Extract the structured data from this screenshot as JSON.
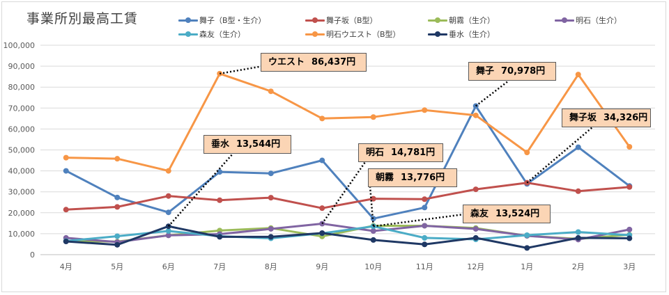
{
  "chart_data": {
    "type": "line",
    "title": "事業所別最高工賃",
    "categories": [
      "4月",
      "5月",
      "6月",
      "7月",
      "8月",
      "9月",
      "10月",
      "11月",
      "12月",
      "1月",
      "2月",
      "3月"
    ],
    "ylim": [
      0,
      100000
    ],
    "yticks": [
      0,
      10000,
      20000,
      30000,
      40000,
      50000,
      60000,
      70000,
      80000,
      90000,
      100000
    ],
    "ytick_labels": [
      "0",
      "10,000",
      "20,000",
      "30,000",
      "40,000",
      "50,000",
      "60,000",
      "70,000",
      "80,000",
      "90,000",
      "100,000"
    ],
    "grid": true,
    "legend_position": "top",
    "series": [
      {
        "name": "舞子（B型・生介）",
        "color": "#4f81bd",
        "values": [
          40000,
          27300,
          20200,
          39500,
          38800,
          45000,
          17200,
          22500,
          70978,
          33800,
          51300,
          32800
        ]
      },
      {
        "name": "舞子坂（B型）",
        "color": "#c0504d",
        "values": [
          21500,
          22800,
          28000,
          26000,
          27200,
          22200,
          26700,
          26500,
          31200,
          34326,
          30300,
          32300
        ]
      },
      {
        "name": "朝霧（生介）",
        "color": "#9bbb59",
        "values": [
          6500,
          6200,
          9200,
          11500,
          12700,
          8700,
          13776,
          13800,
          12700,
          9000,
          7500,
          9500
        ]
      },
      {
        "name": "明石（生介）",
        "color": "#8064a2",
        "values": [
          8000,
          6000,
          9200,
          9800,
          12300,
          14781,
          11300,
          13800,
          12300,
          9000,
          7200,
          12000
        ]
      },
      {
        "name": "森友（生介）",
        "color": "#4bacc6",
        "values": [
          6500,
          8800,
          11300,
          8800,
          7800,
          10200,
          13524,
          8000,
          7300,
          9300,
          10800,
          9300
        ]
      },
      {
        "name": "明石ウエスト（B型）",
        "color": "#f79646",
        "values": [
          46300,
          45800,
          40000,
          86437,
          78000,
          65000,
          65700,
          69000,
          66500,
          48800,
          86000,
          51500
        ]
      },
      {
        "name": "垂水（生介）",
        "color": "#1f3864",
        "values": [
          6300,
          4700,
          13544,
          8500,
          8500,
          10300,
          7000,
          4900,
          8000,
          3200,
          8000,
          7800
        ]
      }
    ],
    "annotations": [
      {
        "series": "明石ウエスト（B型）",
        "month": "7月",
        "label": "ウエスト",
        "value": "86,437円"
      },
      {
        "series": "舞子（B型・生介）",
        "month": "12月",
        "label": "舞子",
        "value": "70,978円"
      },
      {
        "series": "舞子坂（B型）",
        "month": "1月",
        "label": "舞子坂",
        "value": "34,326円"
      },
      {
        "series": "垂水（生介）",
        "month": "6月",
        "label": "垂水",
        "value": "13,544円"
      },
      {
        "series": "明石（生介）",
        "month": "9月",
        "label": "明石",
        "value": "14,781円"
      },
      {
        "series": "朝霧（生介）",
        "month": "10月",
        "label": "朝霧",
        "value": "13,776円"
      },
      {
        "series": "森友（生介）",
        "month": "10月",
        "label": "森友",
        "value": "13,524円"
      }
    ]
  }
}
